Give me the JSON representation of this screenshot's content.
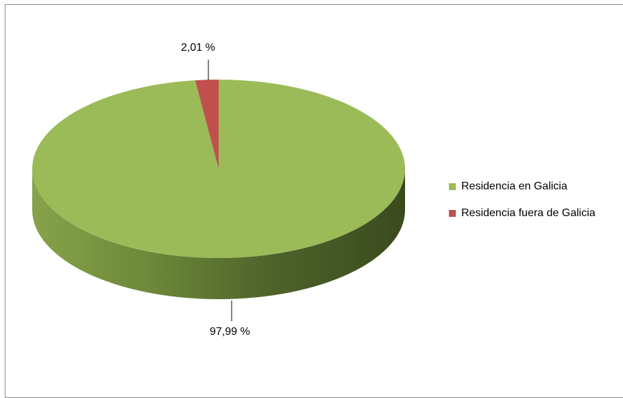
{
  "chart_data": {
    "type": "pie",
    "labels": [
      "Residencia en Galicia",
      "Residencia fuera de Galicia"
    ],
    "values": [
      97.99,
      2.01
    ],
    "value_labels": [
      "97,99 %",
      "2,01 %"
    ],
    "colors": [
      "#9BBB59",
      "#C0504D"
    ],
    "legend_position": "right",
    "style": "3d"
  }
}
